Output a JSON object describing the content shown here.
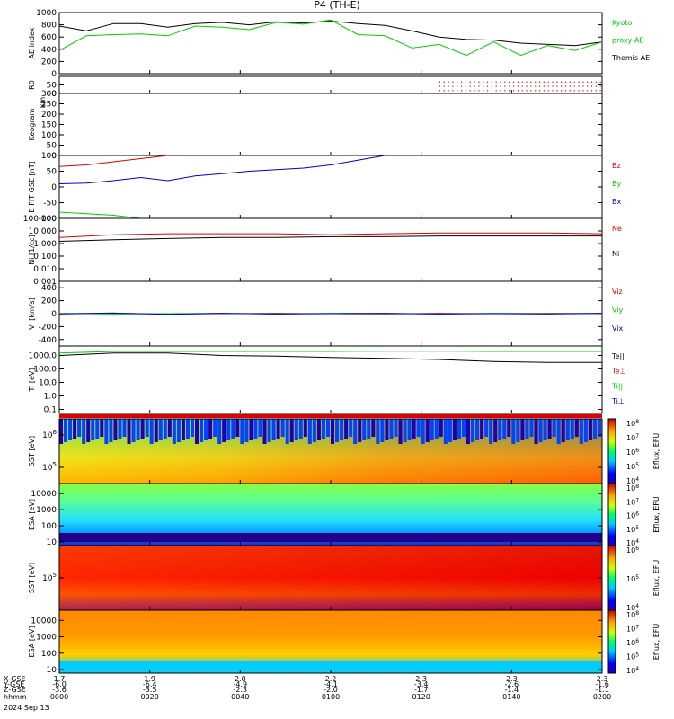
{
  "title": "P4 (TH-E)",
  "colors": {
    "black": "#000000",
    "red": "#dd0000",
    "green": "#00cc00",
    "blue": "#0000cc"
  },
  "chart_data": [
    {
      "type": "line",
      "id": "ae",
      "ylabel": "AE index",
      "ylim": [
        0,
        1000
      ],
      "yticks": [
        "0",
        "200",
        "400",
        "600",
        "800",
        "1000"
      ],
      "legend": [
        {
          "name": "Kyoto",
          "color": "#00cc00"
        },
        {
          "name": "proxy AE",
          "color": "#00cc00"
        },
        {
          "name": "Themis AE",
          "color": "#000000"
        }
      ],
      "x": [
        1.7,
        1.75,
        1.8,
        1.85,
        1.9,
        1.95,
        2.0,
        2.05,
        2.1,
        2.15,
        2.2,
        2.25,
        2.3,
        2.35,
        2.4,
        2.45,
        2.5,
        2.55,
        2.6,
        2.65,
        2.7
      ],
      "series": [
        {
          "name": "Themis AE",
          "color": "#000000",
          "values": [
            780,
            700,
            820,
            820,
            760,
            820,
            840,
            800,
            850,
            830,
            860,
            820,
            790,
            700,
            600,
            560,
            550,
            500,
            480,
            460,
            520
          ]
        },
        {
          "name": "Kyoto proxy AE",
          "color": "#00cc00",
          "values": [
            380,
            620,
            640,
            650,
            620,
            780,
            760,
            720,
            840,
            810,
            880,
            640,
            620,
            420,
            480,
            300,
            520,
            300,
            460,
            380,
            520
          ]
        }
      ]
    },
    {
      "type": "scatter",
      "id": "r0",
      "ylabel": "R0",
      "ylim": [
        0,
        100
      ],
      "yticks": [
        "0",
        "50"
      ],
      "series": [
        {
          "name": "",
          "color": "#dd0000",
          "x": [
            2.4,
            2.7
          ],
          "values": [
            50,
            50
          ]
        }
      ]
    },
    {
      "type": "line",
      "id": "keogram",
      "ylabel": "Keogram",
      "yunit": "km",
      "ylim": [
        0,
        300
      ],
      "yticks": [
        "0",
        "50",
        "100",
        "150",
        "200",
        "250",
        "300"
      ],
      "series": []
    },
    {
      "type": "line",
      "id": "bfield",
      "ylabel": "B FIT GSE [nT]",
      "ylim": [
        -100,
        100
      ],
      "yticks": [
        "-100",
        "-50",
        "0",
        "50",
        "100"
      ],
      "legend": [
        {
          "name": "Bz",
          "color": "#dd0000"
        },
        {
          "name": "By",
          "color": "#00cc00"
        },
        {
          "name": "Bx",
          "color": "#0000cc"
        }
      ],
      "x": [
        1.7,
        1.75,
        1.8,
        1.85,
        1.9,
        1.95,
        2.0,
        2.05,
        2.1,
        2.15,
        2.2,
        2.25,
        2.3
      ],
      "series": [
        {
          "name": "Bz",
          "color": "#dd0000",
          "values": [
            65,
            70,
            80,
            90,
            100,
            null,
            null,
            null,
            null,
            null,
            null,
            null,
            null
          ]
        },
        {
          "name": "By",
          "color": "#00cc00",
          "values": [
            -80,
            -85,
            -90,
            -100,
            null,
            null,
            null,
            null,
            null,
            null,
            null,
            null,
            null
          ]
        },
        {
          "name": "Bx",
          "color": "#0000cc",
          "values": [
            10,
            12,
            20,
            30,
            20,
            35,
            42,
            50,
            55,
            60,
            70,
            85,
            100
          ]
        }
      ]
    },
    {
      "type": "line",
      "id": "density",
      "ylabel": "Ni [1/cc]",
      "yscale": "log",
      "ylim": [
        0.001,
        100
      ],
      "yticks": [
        "0.001",
        "0.010",
        "0.100",
        "1.000",
        "10.000",
        "100.000"
      ],
      "legend": [
        {
          "name": "Ne",
          "color": "#dd0000"
        },
        {
          "name": "Ni",
          "color": "#000000"
        }
      ],
      "x": [
        1.7,
        1.8,
        1.9,
        2.0,
        2.1,
        2.2,
        2.3,
        2.4,
        2.5,
        2.6,
        2.7
      ],
      "series": [
        {
          "name": "Ne",
          "color": "#dd0000",
          "values": [
            3,
            5,
            6,
            6,
            6,
            5,
            6,
            7,
            7,
            7,
            6
          ]
        },
        {
          "name": "Ni",
          "color": "#000000",
          "values": [
            1.5,
            2,
            2.5,
            3,
            3,
            3.5,
            3.5,
            4,
            4,
            4,
            4
          ]
        }
      ]
    },
    {
      "type": "line",
      "id": "velocity",
      "ylabel": "Vi [km/s]",
      "ylim": [
        -500,
        500
      ],
      "yticks": [
        "-400",
        "-200",
        "0",
        "200",
        "400"
      ],
      "legend": [
        {
          "name": "Viz",
          "color": "#dd0000"
        },
        {
          "name": "Viy",
          "color": "#00cc00"
        },
        {
          "name": "Vix",
          "color": "#0000cc"
        }
      ],
      "x": [
        1.7,
        1.8,
        1.9,
        2.0,
        2.1,
        2.2,
        2.3,
        2.4,
        2.5,
        2.6,
        2.7
      ],
      "series": [
        {
          "name": "Viz",
          "color": "#dd0000",
          "values": [
            0,
            5,
            -5,
            0,
            5,
            0,
            -5,
            5,
            0,
            5,
            0
          ]
        },
        {
          "name": "Viy",
          "color": "#00cc00",
          "values": [
            5,
            -5,
            0,
            5,
            -5,
            5,
            0,
            -5,
            5,
            0,
            5
          ]
        },
        {
          "name": "Vix",
          "color": "#0000cc",
          "values": [
            -5,
            10,
            -10,
            5,
            -5,
            0,
            5,
            -5,
            0,
            -5,
            5
          ]
        }
      ]
    },
    {
      "type": "line",
      "id": "temperature",
      "ylabel": "Ti [eV]",
      "yscale": "log",
      "ylim": [
        0.05,
        5000
      ],
      "yticks": [
        "0.1",
        "1.0",
        "10.0",
        "100.0",
        "1000.0"
      ],
      "legend": [
        {
          "name": "Te||",
          "color": "#000000"
        },
        {
          "name": "Te⊥",
          "color": "#dd0000"
        },
        {
          "name": "Ti||",
          "color": "#00cc00"
        },
        {
          "name": "Ti⊥",
          "color": "#0000cc"
        }
      ],
      "x": [
        1.7,
        1.8,
        1.9,
        2.0,
        2.1,
        2.2,
        2.3,
        2.4,
        2.5,
        2.6,
        2.7
      ],
      "series": [
        {
          "name": "Ti||",
          "color": "#00cc00",
          "values": [
            1500,
            2000,
            2000,
            2000,
            2000,
            2000,
            2100,
            2100,
            2000,
            2000,
            2000
          ]
        },
        {
          "name": "Te||",
          "color": "#000000",
          "values": [
            1000,
            1500,
            1500,
            1000,
            900,
            700,
            600,
            500,
            350,
            300,
            300
          ]
        }
      ]
    },
    {
      "type": "heatmap",
      "id": "sst-e",
      "ylabel": "SST [eV]",
      "yticks": [
        "10^5",
        "10^6"
      ],
      "colorbar": {
        "label": "Eflux, EFU",
        "ticks": [
          "10^4",
          "10^5",
          "10^6",
          "10^7",
          "10^8"
        ]
      }
    },
    {
      "type": "heatmap",
      "id": "esa-e",
      "ylabel": "ESA [eV]",
      "yticks": [
        "10",
        "100",
        "1000",
        "10000"
      ],
      "colorbar": {
        "label": "Eflux, EFU",
        "ticks": [
          "10^4",
          "10^5",
          "10^6",
          "10^7",
          "10^8"
        ]
      }
    },
    {
      "type": "heatmap",
      "id": "sst-i",
      "ylabel": "SST [eV]",
      "yticks": [
        "10^5"
      ],
      "colorbar": {
        "label": "Eflux, EFU",
        "ticks": [
          "10^4",
          "10^5",
          "10^6"
        ]
      }
    },
    {
      "type": "heatmap",
      "id": "esa-i",
      "ylabel": "ESA [eV]",
      "yticks": [
        "10",
        "100",
        "1000",
        "10000"
      ],
      "colorbar": {
        "label": "Eflux, EFU",
        "ticks": [
          "10^4",
          "10^5",
          "10^6",
          "10^7",
          "10^8"
        ]
      }
    }
  ],
  "time_axis": {
    "row_labels": [
      "X-GSE",
      "Y-GSE",
      "Z-GSE",
      "hhmm",
      "2024 Sep 13"
    ],
    "columns": [
      {
        "x": "1.7",
        "y": "-6.0",
        "z": "-3.6",
        "hhmm": "0000"
      },
      {
        "x": "1.9",
        "y": "-6.4",
        "z": "-3.5",
        "hhmm": "0020"
      },
      {
        "x": "2.0",
        "y": "-4.9",
        "z": "-2.3",
        "hhmm": "0040"
      },
      {
        "x": "2.2",
        "y": "-4.1",
        "z": "-2.0",
        "hhmm": "0100"
      },
      {
        "x": "2.3",
        "y": "-3.4",
        "z": "-1.7",
        "hhmm": "0120"
      },
      {
        "x": "2.3",
        "y": "-2.6",
        "z": "-1.4",
        "hhmm": "0140"
      },
      {
        "x": "2.3",
        "y": "-1.6",
        "z": "-1.1",
        "hhmm": "0200"
      }
    ]
  }
}
